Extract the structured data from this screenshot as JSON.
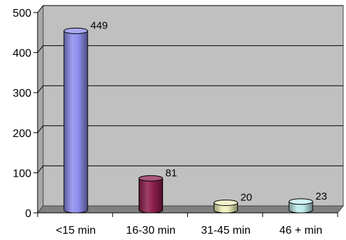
{
  "chart_data": {
    "type": "bar",
    "title": "",
    "xlabel": "",
    "ylabel": "",
    "categories": [
      "<15 min",
      "16-30 min",
      "31-45 min",
      "46 + min"
    ],
    "values": [
      449,
      81,
      20,
      23
    ],
    "data_labels": [
      "449",
      "81",
      "20",
      "23"
    ],
    "ylim": [
      0,
      500
    ],
    "yticks": [
      0,
      100,
      200,
      300,
      400,
      500
    ],
    "ytick_labels": [
      "0",
      "100",
      "200",
      "300",
      "400",
      "500"
    ],
    "grid": true,
    "legend": "none",
    "bar_colors": [
      "#8E8EF0",
      "#8E1F4E",
      "#EEEEBC",
      "#BEEBEB"
    ],
    "plot_background": "#C0C0C0",
    "floor_color": "#808080"
  }
}
